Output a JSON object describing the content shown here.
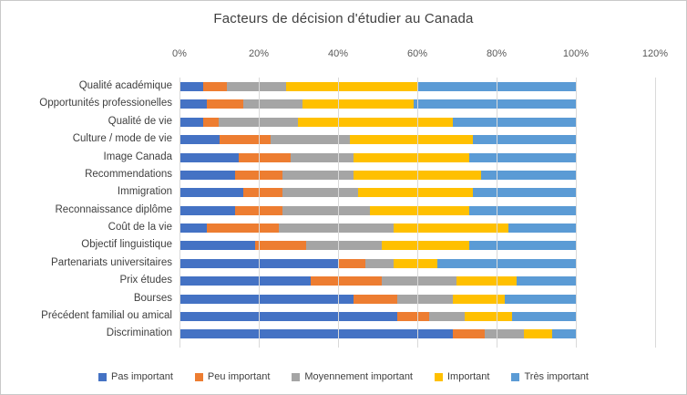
{
  "title": "Facteurs de décision d'étudier au Canada",
  "chart_data": {
    "type": "bar",
    "orientation": "horizontal",
    "stacked": true,
    "units": "percent",
    "title": "Facteurs de décision d'étudier au Canada",
    "categories": [
      "Qualité académique",
      "Opportunités professionelles",
      "Qualité de vie",
      "Culture / mode de vie",
      "Image Canada",
      "Recommendations",
      "Immigration",
      "Reconnaissance diplôme",
      "Coût de la vie",
      "Objectif linguistique",
      "Partenariats universitaires",
      "Prix études",
      "Bourses",
      "Précédent familial ou amical",
      "Discrimination"
    ],
    "series": [
      {
        "name": "Pas important",
        "color": "#4472C4",
        "values": [
          6,
          7,
          6,
          10,
          15,
          14,
          16,
          14,
          7,
          19,
          40,
          33,
          44,
          55,
          69
        ]
      },
      {
        "name": "Peu important",
        "color": "#ED7D31",
        "values": [
          6,
          9,
          4,
          13,
          13,
          12,
          10,
          12,
          18,
          13,
          7,
          18,
          11,
          8,
          8
        ]
      },
      {
        "name": "Moyennement important",
        "color": "#A5A5A5",
        "values": [
          15,
          15,
          20,
          20,
          16,
          18,
          19,
          22,
          29,
          19,
          7,
          19,
          14,
          9,
          10
        ]
      },
      {
        "name": "Important",
        "color": "#FFC000",
        "values": [
          33,
          28,
          39,
          31,
          29,
          32,
          29,
          25,
          29,
          22,
          11,
          15,
          13,
          12,
          7
        ]
      },
      {
        "name": "Très important",
        "color": "#5B9BD5",
        "values": [
          40,
          41,
          31,
          26,
          27,
          24,
          26,
          27,
          17,
          27,
          35,
          15,
          18,
          16,
          6
        ]
      }
    ],
    "x_axis": {
      "position": "top",
      "min": 0,
      "max": 120,
      "tick_labels": [
        "0%",
        "20%",
        "40%",
        "60%",
        "80%",
        "100%",
        "120%"
      ]
    },
    "legend": {
      "position": "bottom",
      "entries": [
        "Pas important",
        "Peu important",
        "Moyennement important",
        "Important",
        "Très important"
      ]
    },
    "grid": "vertical",
    "gridline_color": "#d9d9d9"
  }
}
